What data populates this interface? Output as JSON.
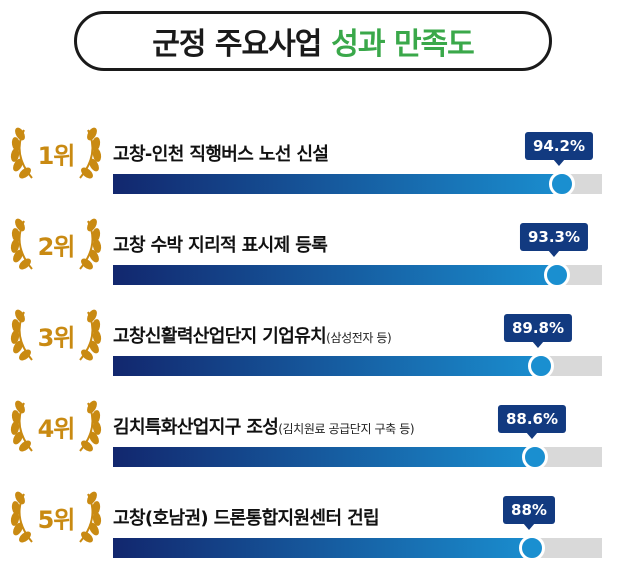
{
  "title": {
    "main": "군정 주요사업",
    "highlight": "성과 만족도"
  },
  "colors": {
    "title_highlight": "#3aa84a",
    "gold": "#c98a12",
    "bar_start": "#12276e",
    "bar_end": "#1a8fd0",
    "tag": "#123a80",
    "track": "#d9d9d9"
  },
  "chart_data": {
    "type": "bar",
    "orientation": "horizontal",
    "value_unit": "%",
    "xlim": [
      0,
      100
    ],
    "items": [
      {
        "rank": "1위",
        "label": "고창-인천 직행버스 노선 신설",
        "note": "",
        "value": 94.2,
        "value_label": "94.2%"
      },
      {
        "rank": "2위",
        "label": "고창 수박 지리적 표시제 등록",
        "note": "",
        "value": 93.3,
        "value_label": "93.3%"
      },
      {
        "rank": "3위",
        "label": "고창신활력산업단지 기업유치",
        "note": "(삼성전자 등)",
        "value": 89.8,
        "value_label": "89.8%"
      },
      {
        "rank": "4위",
        "label": "김치특화산업지구 조성",
        "note": "(김치원료 공급단지 구축 등)",
        "value": 88.6,
        "value_label": "88.6%"
      },
      {
        "rank": "5위",
        "label": "고창(호남권) 드론통합지원센터 건립",
        "note": "",
        "value": 88,
        "value_label": "88%"
      }
    ]
  }
}
